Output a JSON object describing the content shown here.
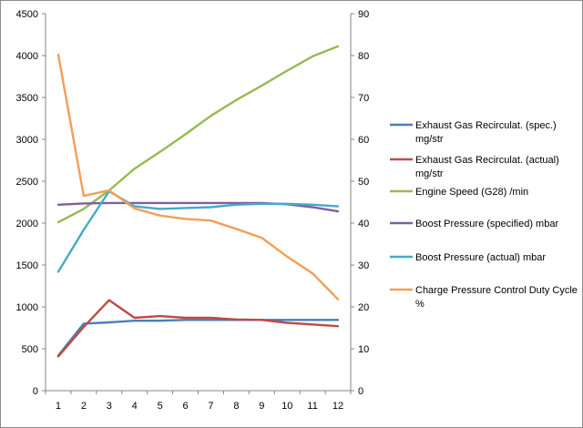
{
  "chart_data": {
    "type": "line",
    "title": "",
    "xlabel": "",
    "ylabel": "",
    "ylabel_right": "",
    "x": [
      1,
      2,
      3,
      4,
      5,
      6,
      7,
      8,
      9,
      10,
      11,
      12
    ],
    "ylim_left": [
      0,
      4500
    ],
    "ylim_right": [
      0,
      90
    ],
    "yticks_left": [
      "0",
      "500",
      "1000",
      "1500",
      "2000",
      "2500",
      "3000",
      "3500",
      "4000",
      "4500"
    ],
    "yticks_right": [
      "0",
      "10",
      "20",
      "30",
      "40",
      "50",
      "60",
      "70",
      "80",
      "90"
    ],
    "xticks": [
      "1",
      "2",
      "3",
      "4",
      "5",
      "6",
      "7",
      "8",
      "9",
      "10",
      "11",
      "12"
    ],
    "grid": false,
    "legend_position": "right",
    "series": [
      {
        "name": "Exhaust Gas Recirculat. (spec.) mg/str",
        "legend_lines": [
          "Exhaust Gas Recirculat. (spec.)",
          "mg/str"
        ],
        "axis": "left",
        "color": "#4a7ebb",
        "values": [
          420,
          800,
          815,
          835,
          835,
          845,
          845,
          845,
          845,
          845,
          845,
          845
        ]
      },
      {
        "name": "Exhaust Gas Recirculat. (actual) mg/str",
        "legend_lines": [
          "Exhaust Gas Recirculat. (actual)",
          "mg/str"
        ],
        "axis": "left",
        "color": "#be4b48",
        "values": [
          410,
          760,
          1080,
          870,
          890,
          870,
          870,
          850,
          845,
          810,
          790,
          770
        ]
      },
      {
        "name": "Engine Speed (G28) /min",
        "legend_lines": [
          "Engine Speed (G28)  /min"
        ],
        "axis": "left",
        "color": "#98b954",
        "values": [
          2010,
          2170,
          2390,
          2650,
          2850,
          3060,
          3280,
          3470,
          3640,
          3820,
          3990,
          4110
        ]
      },
      {
        "name": "Boost Pressure (specified) mbar",
        "legend_lines": [
          "Boost Pressure (specified)  mbar"
        ],
        "axis": "left",
        "color": "#7d60a0",
        "values": [
          2220,
          2235,
          2240,
          2240,
          2240,
          2240,
          2240,
          2240,
          2240,
          2225,
          2190,
          2140
        ]
      },
      {
        "name": "Boost Pressure (actual) mbar",
        "legend_lines": [
          "Boost Pressure (actual)  mbar"
        ],
        "axis": "left",
        "color": "#46aac5",
        "values": [
          1420,
          1920,
          2380,
          2200,
          2170,
          2180,
          2190,
          2220,
          2230,
          2230,
          2220,
          2200
        ]
      },
      {
        "name": "Charge Pressure Control Duty Cycle %",
        "legend_lines": [
          "Charge Pressure Control Duty Cycle",
          "%"
        ],
        "axis": "right",
        "color": "#f59d56",
        "values": [
          80.2,
          46.5,
          47.8,
          43.5,
          41.8,
          41.0,
          40.6,
          38.6,
          36.5,
          32.0,
          28.0,
          21.8
        ]
      }
    ]
  }
}
